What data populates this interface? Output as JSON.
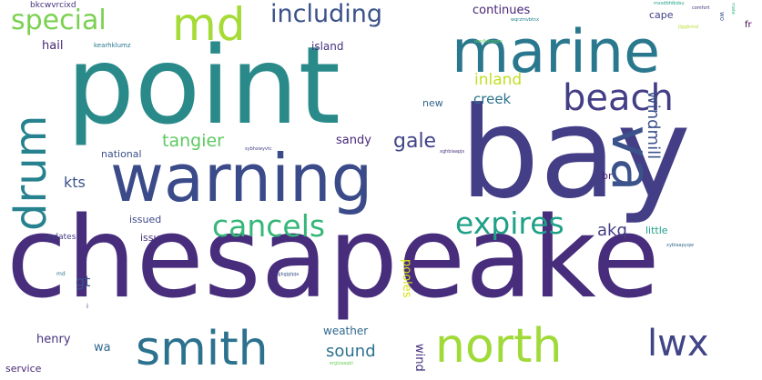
{
  "cloud": {
    "words": [
      {
        "text": "chesapeake",
        "color": "#472d7b"
      },
      {
        "text": "point",
        "color": "#2a8a8a"
      },
      {
        "text": "bay",
        "color": "#433e85"
      },
      {
        "text": "warning",
        "color": "#3b4b8a"
      },
      {
        "text": "marine",
        "color": "#2a788e"
      },
      {
        "text": "md",
        "color": "#a5db36"
      },
      {
        "text": "drum",
        "color": "#26828e"
      },
      {
        "text": "va",
        "color": "#3b528b"
      },
      {
        "text": "beach",
        "color": "#433e85"
      },
      {
        "text": "smith",
        "color": "#2c728e"
      },
      {
        "text": "north",
        "color": "#a0da39"
      },
      {
        "text": "lwx",
        "color": "#414487"
      },
      {
        "text": "cancels",
        "color": "#35b779"
      },
      {
        "text": "expires",
        "color": "#1fa187"
      },
      {
        "text": "special",
        "color": "#7ad151"
      },
      {
        "text": "including",
        "color": "#3b528b"
      },
      {
        "text": "tangier",
        "color": "#5ec962"
      },
      {
        "text": "gale",
        "color": "#414487"
      },
      {
        "text": "akq",
        "color": "#433e85"
      },
      {
        "text": "windmill",
        "color": "#3b528b"
      },
      {
        "text": "inland",
        "color": "#c2df23"
      },
      {
        "text": "creek",
        "color": "#2c728e"
      },
      {
        "text": "sound",
        "color": "#2c728e"
      },
      {
        "text": "continues",
        "color": "#482576"
      },
      {
        "text": "sandy",
        "color": "#482878"
      },
      {
        "text": "wind",
        "color": "#46337e"
      },
      {
        "text": "pooles",
        "color": "#d8e219"
      },
      {
        "text": "weather",
        "color": "#31688e"
      },
      {
        "text": "kts",
        "color": "#3b528b"
      },
      {
        "text": "gt",
        "color": "#3b528b"
      },
      {
        "text": "hail",
        "color": "#482878"
      },
      {
        "text": "henry",
        "color": "#46327e"
      },
      {
        "text": "wa",
        "color": "#31688e"
      },
      {
        "text": "service",
        "color": "#482878"
      },
      {
        "text": "island",
        "color": "#46337e"
      },
      {
        "text": "issued",
        "color": "#3e4a89"
      },
      {
        "text": "issues",
        "color": "#46327e"
      },
      {
        "text": "national",
        "color": "#3b528b"
      },
      {
        "text": "little",
        "color": "#1f9e89"
      },
      {
        "text": "cape",
        "color": "#433e85"
      },
      {
        "text": "new",
        "color": "#31688e"
      },
      {
        "text": "br",
        "color": "#482475"
      },
      {
        "text": "updates",
        "color": "#433e85"
      },
      {
        "text": "bkcwvrcixd",
        "color": "#46327e"
      },
      {
        "text": "kearhklumz",
        "color": "#2a788e"
      },
      {
        "text": "fr",
        "color": "#440154"
      },
      {
        "text": "wo",
        "color": "#3b528b"
      },
      {
        "text": "wqrzmvbtnx",
        "color": "#26828e"
      },
      {
        "text": "owslhkzxgm",
        "color": "#5ec962"
      },
      {
        "text": "mxsdbfdkdsu",
        "color": "#1fa187"
      },
      {
        "text": "comfort",
        "color": "#46327e"
      },
      {
        "text": "mate",
        "color": "#35b779"
      },
      {
        "text": "jlgyjkmxl",
        "color": "#b5de2b"
      },
      {
        "text": "sybhxwyvtc",
        "color": "#433e85"
      },
      {
        "text": "xghbiaapjs",
        "color": "#46327e"
      },
      {
        "text": "qjkgjglpja",
        "color": "#3b528b"
      },
      {
        "text": "xyblaapyqw",
        "color": "#31688e"
      },
      {
        "text": "erglzaaqkl",
        "color": "#6ccd5a"
      },
      {
        "text": "al",
        "color": "#482878"
      },
      {
        "text": "md",
        "color": "#2a788e"
      },
      {
        "text": "i",
        "color": "#46327e"
      }
    ]
  }
}
